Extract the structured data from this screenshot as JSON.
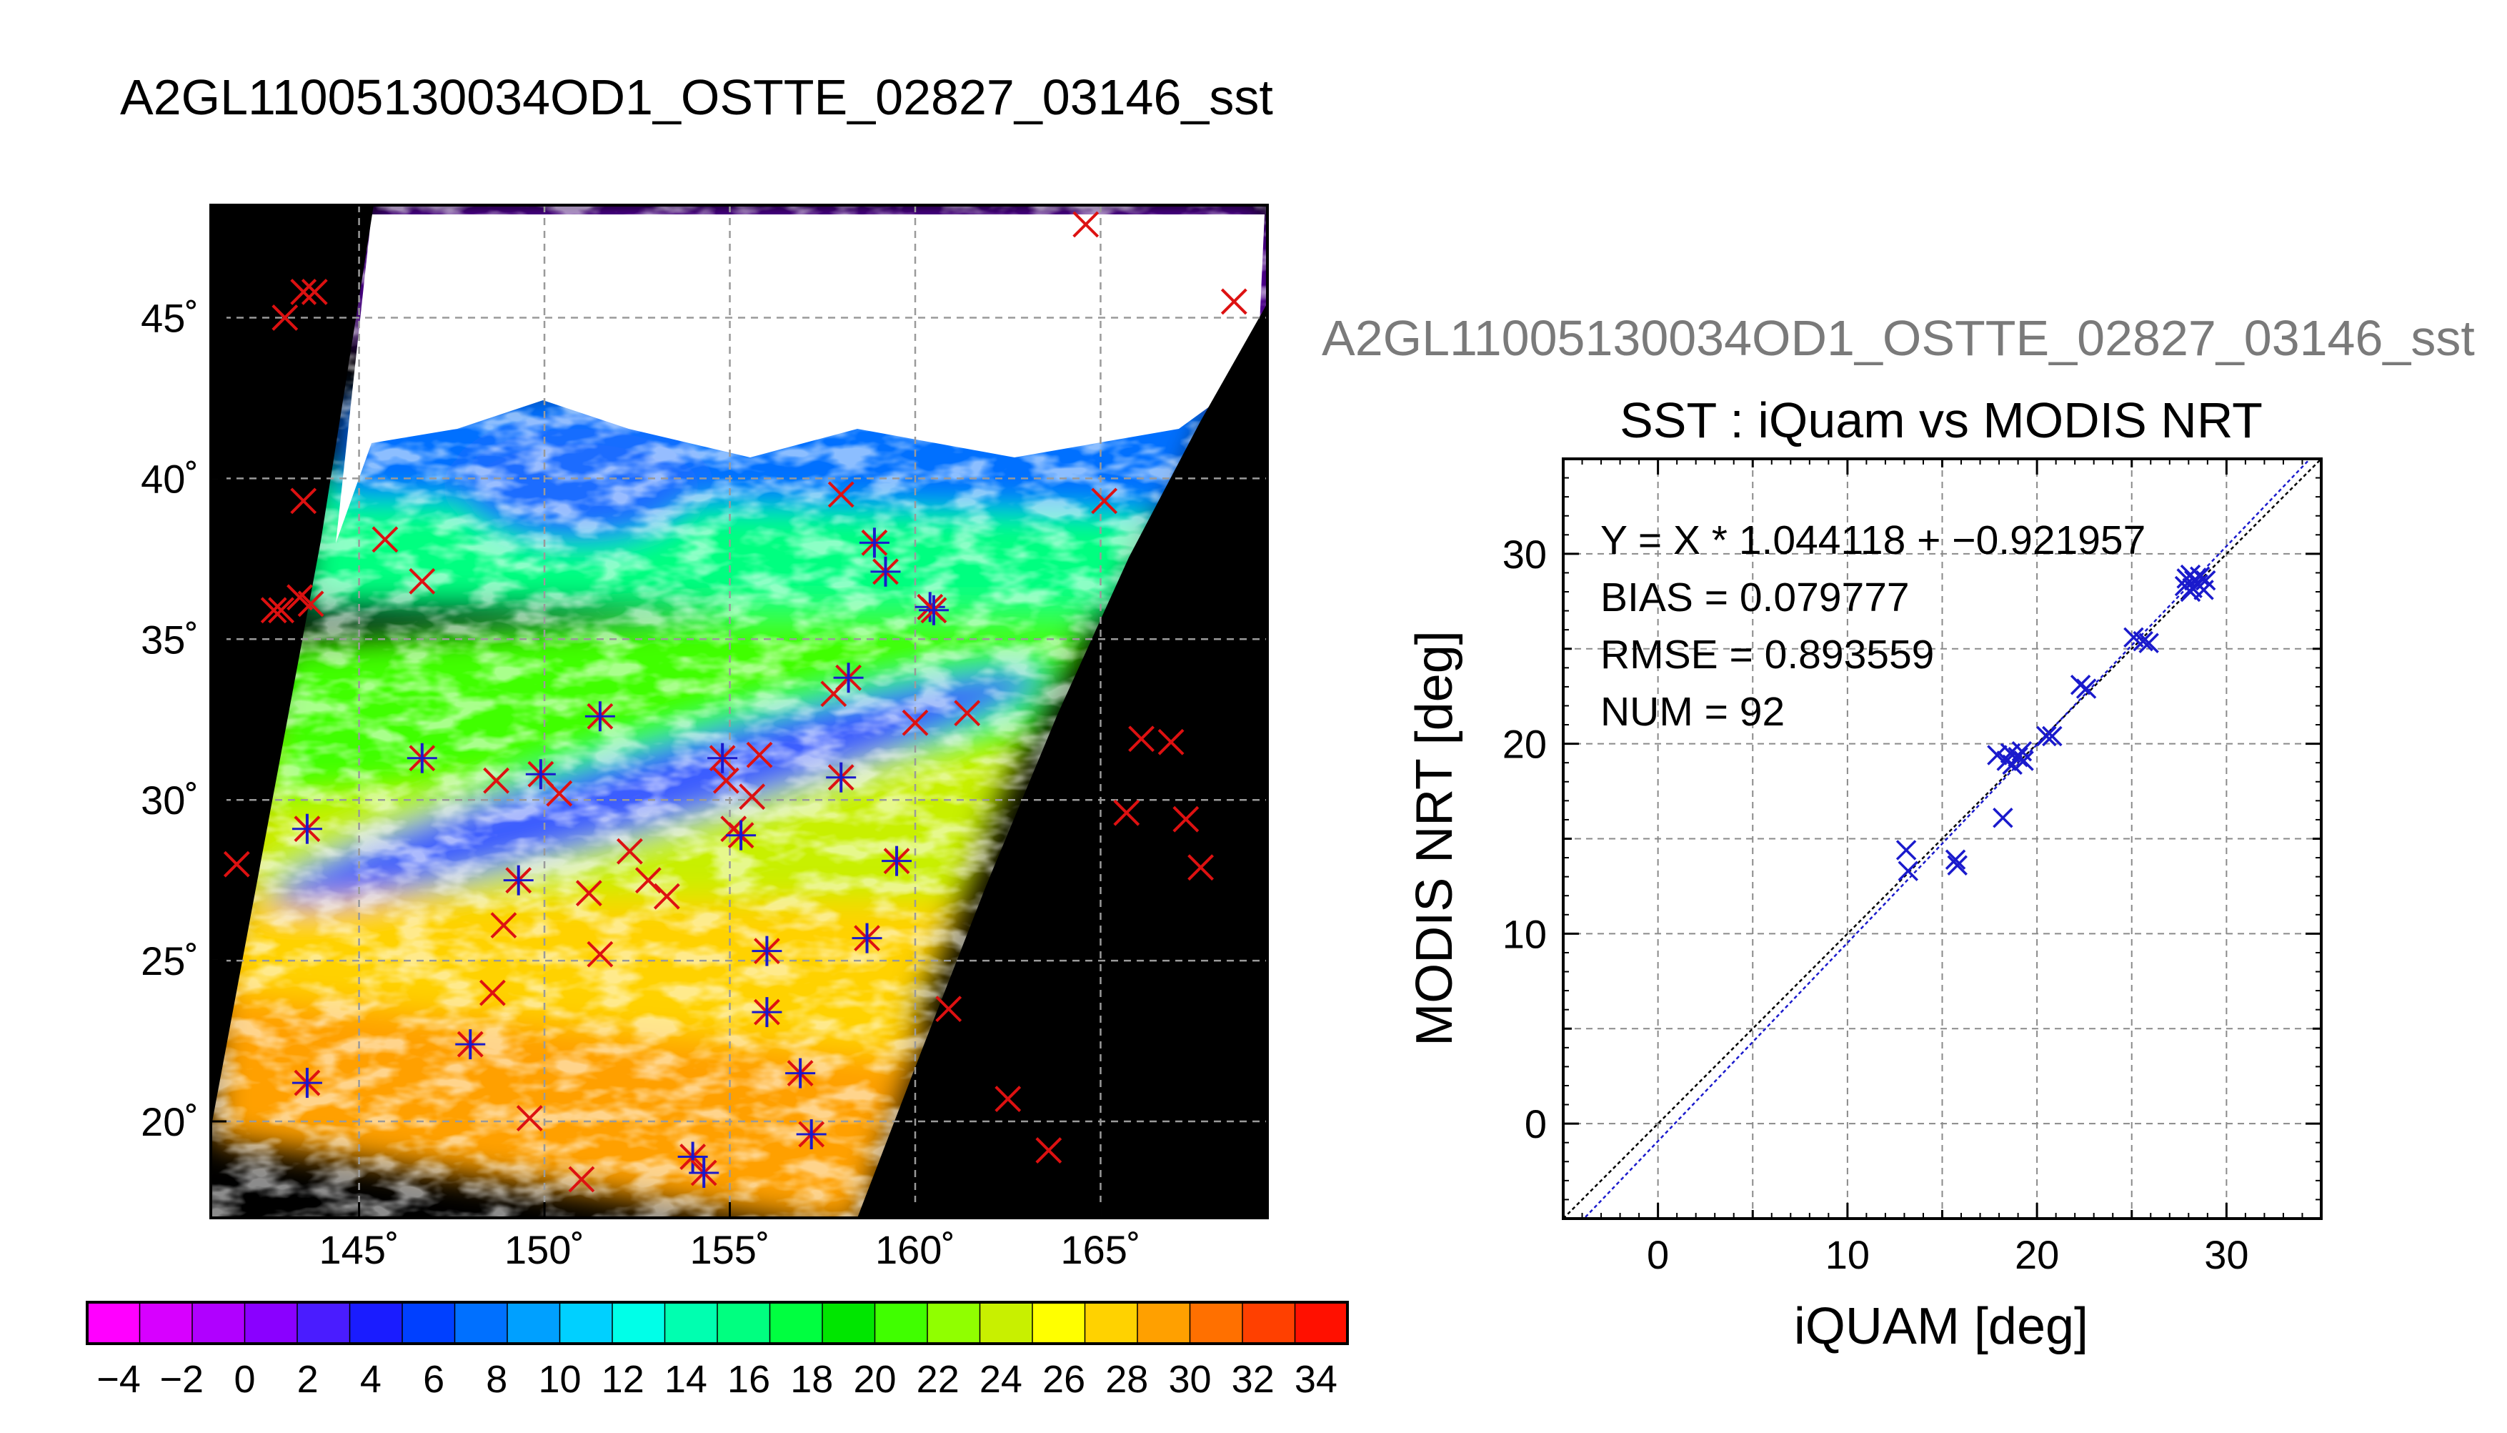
{
  "page_title": "A2GL11005130034OD1_OSTTE_02827_03146_sst",
  "chart_data": [
    {
      "type": "map",
      "title": "",
      "lon_range": [
        141,
        169.5
      ],
      "lat_range": [
        17,
        48.5
      ],
      "lon_ticks": [
        145,
        150,
        155,
        160,
        165
      ],
      "lon_tick_labels": [
        "145˚",
        "150˚",
        "155˚",
        "160˚",
        "165˚"
      ],
      "lat_ticks": [
        20,
        25,
        30,
        35,
        40,
        45
      ],
      "lat_tick_labels": [
        "20˚",
        "25˚",
        "30˚",
        "35˚",
        "40˚",
        "45˚"
      ],
      "grid": true,
      "colorbar": {
        "ticks": [
          -4,
          -2,
          0,
          2,
          4,
          6,
          8,
          10,
          12,
          14,
          16,
          18,
          20,
          22,
          24,
          26,
          28,
          30,
          32,
          34
        ],
        "tick_labels": [
          "−4",
          "−2",
          "0",
          "2",
          "4",
          "6",
          "8",
          "10",
          "12",
          "14",
          "16",
          "18",
          "20",
          "22",
          "24",
          "26",
          "28",
          "30",
          "32",
          "34"
        ],
        "range": [
          -5,
          35
        ],
        "colors": [
          "#ff00ff",
          "#d700ff",
          "#b000ff",
          "#8a00ff",
          "#4a1cff",
          "#1a1cff",
          "#0040ff",
          "#0070ff",
          "#00a0ff",
          "#00d0ff",
          "#00ffe8",
          "#00ffb0",
          "#00ff80",
          "#00ff40",
          "#00e600",
          "#40ff00",
          "#90ff00",
          "#c8f000",
          "#ffff00",
          "#ffd200",
          "#ffa000",
          "#ff7000",
          "#ff4000",
          "#ff1000"
        ]
      },
      "markers": {
        "match_color": "#1a1acc",
        "insitu_color": "#dd1111",
        "matched": [
          [
            143.6,
            21.2
          ],
          [
            143.6,
            29.1
          ],
          [
            146.7,
            31.3
          ],
          [
            148.0,
            22.4
          ],
          [
            149.9,
            30.8
          ],
          [
            151.5,
            32.6
          ],
          [
            156.0,
            25.3
          ],
          [
            156.0,
            23.4
          ],
          [
            156.9,
            21.5
          ],
          [
            157.2,
            19.6
          ],
          [
            158.0,
            30.7
          ],
          [
            158.2,
            33.8
          ],
          [
            158.7,
            25.7
          ],
          [
            158.9,
            38.0
          ],
          [
            159.2,
            37.1
          ],
          [
            159.5,
            28.1
          ],
          [
            160.4,
            36.0
          ],
          [
            160.5,
            35.9
          ],
          [
            154.0,
            18.9
          ],
          [
            154.3,
            18.4
          ],
          [
            155.3,
            28.9
          ],
          [
            154.8,
            31.3
          ],
          [
            149.3,
            27.5
          ]
        ],
        "insitu_only": [
          [
            143.0,
            45.0
          ],
          [
            143.5,
            45.8
          ],
          [
            143.8,
            45.8
          ],
          [
            143.5,
            39.3
          ],
          [
            142.7,
            35.9
          ],
          [
            142.9,
            35.9
          ],
          [
            143.4,
            36.3
          ],
          [
            143.7,
            36.1
          ],
          [
            145.7,
            38.1
          ],
          [
            146.7,
            36.8
          ],
          [
            141.7,
            28.0
          ],
          [
            148.7,
            30.6
          ],
          [
            148.9,
            26.1
          ],
          [
            148.6,
            24.0
          ],
          [
            149.6,
            20.1
          ],
          [
            150.4,
            30.2
          ],
          [
            151.2,
            27.1
          ],
          [
            151.5,
            25.2
          ],
          [
            152.3,
            28.4
          ],
          [
            152.8,
            27.5
          ],
          [
            153.3,
            27.0
          ],
          [
            154.9,
            30.6
          ],
          [
            155.1,
            29.1
          ],
          [
            155.6,
            30.1
          ],
          [
            155.8,
            31.4
          ],
          [
            157.8,
            33.3
          ],
          [
            158.0,
            39.5
          ],
          [
            160.0,
            32.4
          ],
          [
            161.4,
            32.7
          ],
          [
            160.9,
            23.5
          ],
          [
            162.5,
            20.7
          ],
          [
            163.6,
            19.1
          ],
          [
            164.6,
            47.9
          ],
          [
            165.1,
            39.3
          ],
          [
            168.6,
            45.5
          ],
          [
            166.1,
            31.9
          ],
          [
            166.9,
            31.8
          ],
          [
            165.7,
            29.6
          ],
          [
            167.3,
            29.4
          ],
          [
            167.7,
            27.9
          ],
          [
            151.0,
            18.2
          ]
        ]
      }
    },
    {
      "type": "scatter",
      "title": "SST : iQuam vs MODIS NRT",
      "subtitle": "A2GL11005130034OD1_OSTTE_02827_03146_sst",
      "xlabel": "iQUAM [deg]",
      "ylabel": "MODIS NRT [deg]",
      "xlim": [
        -5,
        35
      ],
      "ylim": [
        -5,
        35
      ],
      "xticks": [
        0,
        10,
        20,
        30
      ],
      "yticks": [
        0,
        10,
        20,
        30
      ],
      "grid": true,
      "stats": [
        "Y = X * 1.044118 + −0.921957",
        "BIAS = 0.079777",
        "RMSE = 0.893559",
        "NUM = 92"
      ],
      "fit": {
        "slope": 1.044118,
        "intercept": -0.921957
      },
      "point_color": "#1a1acc",
      "series": [
        {
          "points": [
            [
              13.1,
              14.4
            ],
            [
              13.2,
              13.3
            ],
            [
              15.7,
              13.9
            ],
            [
              15.8,
              13.6
            ],
            [
              17.9,
              19.4
            ],
            [
              18.2,
              16.1
            ],
            [
              18.4,
              19.1
            ],
            [
              18.6,
              19.5
            ],
            [
              18.7,
              18.9
            ],
            [
              19.0,
              19.3
            ],
            [
              19.2,
              19.6
            ],
            [
              19.3,
              19.1
            ],
            [
              20.5,
              20.4
            ],
            [
              20.8,
              20.4
            ],
            [
              22.3,
              23.1
            ],
            [
              22.6,
              22.9
            ],
            [
              25.1,
              25.6
            ],
            [
              25.6,
              25.4
            ],
            [
              25.9,
              25.3
            ],
            [
              27.8,
              28.3
            ],
            [
              27.9,
              28.7
            ],
            [
              28.1,
              28.9
            ],
            [
              28.2,
              28.2
            ],
            [
              28.3,
              28.6
            ],
            [
              28.5,
              28.4
            ],
            [
              28.6,
              28.8
            ],
            [
              28.8,
              28.1
            ],
            [
              28.9,
              28.6
            ],
            [
              28.1,
              28.0
            ]
          ]
        }
      ]
    }
  ]
}
